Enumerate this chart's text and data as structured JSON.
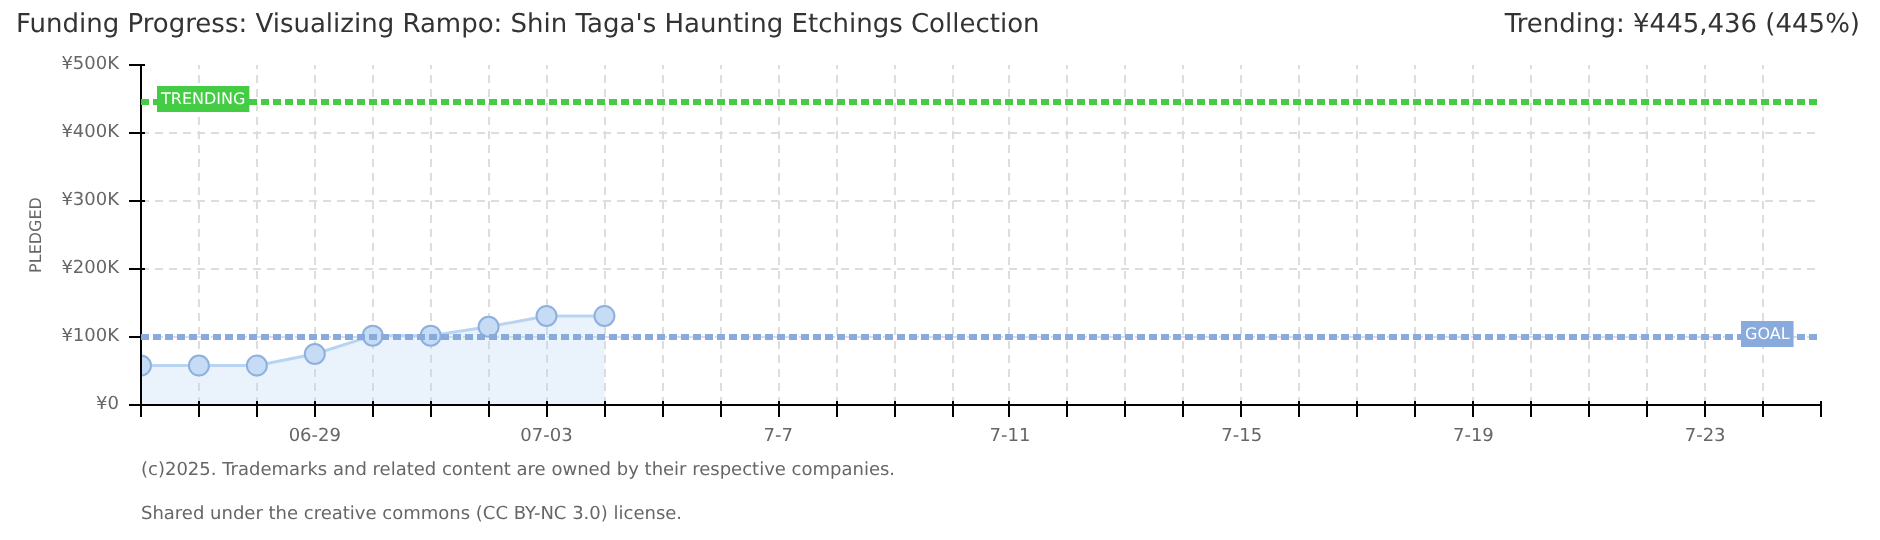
{
  "chart_data": {
    "type": "area",
    "title": "Funding Progress: Visualizing Rampo: Shin Taga's Haunting Etchings Collection",
    "subtitle": "Trending:  ¥445,436 (445%)",
    "ylabel": "PLEDGED",
    "x": [
      "2025-06-26",
      "2025-06-27",
      "2025-06-28",
      "2025-06-29",
      "2025-06-30",
      "2025-07-01",
      "2025-07-02",
      "2025-07-03",
      "2025-07-04"
    ],
    "series": [
      {
        "color": "#b9d4f2",
        "values": [
          58000,
          58000,
          58000,
          75000,
          102000,
          102000,
          115000,
          131000,
          131000
        ]
      }
    ],
    "xlim": [
      "2025-06-26",
      "2025-07-25"
    ],
    "xticks": [
      {
        "value": "2025-06-26",
        "label": null
      },
      {
        "value": "2025-06-27",
        "label": null
      },
      {
        "value": "2025-06-28",
        "label": null
      },
      {
        "value": "2025-06-29",
        "label": "06-29"
      },
      {
        "value": "2025-06-30",
        "label": null
      },
      {
        "value": "2025-07-01",
        "label": null
      },
      {
        "value": "2025-07-02",
        "label": null
      },
      {
        "value": "2025-07-03",
        "label": "07-03"
      },
      {
        "value": "2025-07-04",
        "label": null
      },
      {
        "value": "2025-07-05",
        "label": null
      },
      {
        "value": "2025-07-06",
        "label": null
      },
      {
        "value": "2025-07-07",
        "label": "7-7"
      },
      {
        "value": "2025-07-08",
        "label": null
      },
      {
        "value": "2025-07-09",
        "label": null
      },
      {
        "value": "2025-07-10",
        "label": null
      },
      {
        "value": "2025-07-11",
        "label": "7-11"
      },
      {
        "value": "2025-07-12",
        "label": null
      },
      {
        "value": "2025-07-13",
        "label": null
      },
      {
        "value": "2025-07-14",
        "label": null
      },
      {
        "value": "2025-07-15",
        "label": "7-15"
      },
      {
        "value": "2025-07-16",
        "label": null
      },
      {
        "value": "2025-07-17",
        "label": null
      },
      {
        "value": "2025-07-18",
        "label": null
      },
      {
        "value": "2025-07-19",
        "label": "7-19"
      },
      {
        "value": "2025-07-20",
        "label": null
      },
      {
        "value": "2025-07-21",
        "label": null
      },
      {
        "value": "2025-07-22",
        "label": null
      },
      {
        "value": "2025-07-23",
        "label": "7-23"
      },
      {
        "value": "2025-07-24",
        "label": null
      },
      {
        "value": "2025-07-25",
        "label": null
      }
    ],
    "ylim": [
      0,
      500000
    ],
    "yticks": [
      {
        "value": 0,
        "label": "¥0"
      },
      {
        "value": 100000,
        "label": "¥100K"
      },
      {
        "value": 200000,
        "label": "¥200K"
      },
      {
        "value": 300000,
        "label": "¥300K"
      },
      {
        "value": 400000,
        "label": "¥400K"
      },
      {
        "value": 500000,
        "label": "¥500K"
      }
    ],
    "ref_lines": [
      {
        "axis": "y",
        "value": 445436,
        "label": "TRENDING",
        "color": "#44cc44",
        "line_style": "dashed"
      },
      {
        "axis": "y",
        "value": 100000,
        "label": "GOAL",
        "color": "#88aadd",
        "line_style": "dashed"
      }
    ],
    "grid": true,
    "marker": "circle",
    "line_style": "solid",
    "annotations": [
      "(c)2025. Trademarks and related content are owned by their respective companies.",
      "Shared under the creative commons (CC BY-NC 3.0) license."
    ]
  }
}
